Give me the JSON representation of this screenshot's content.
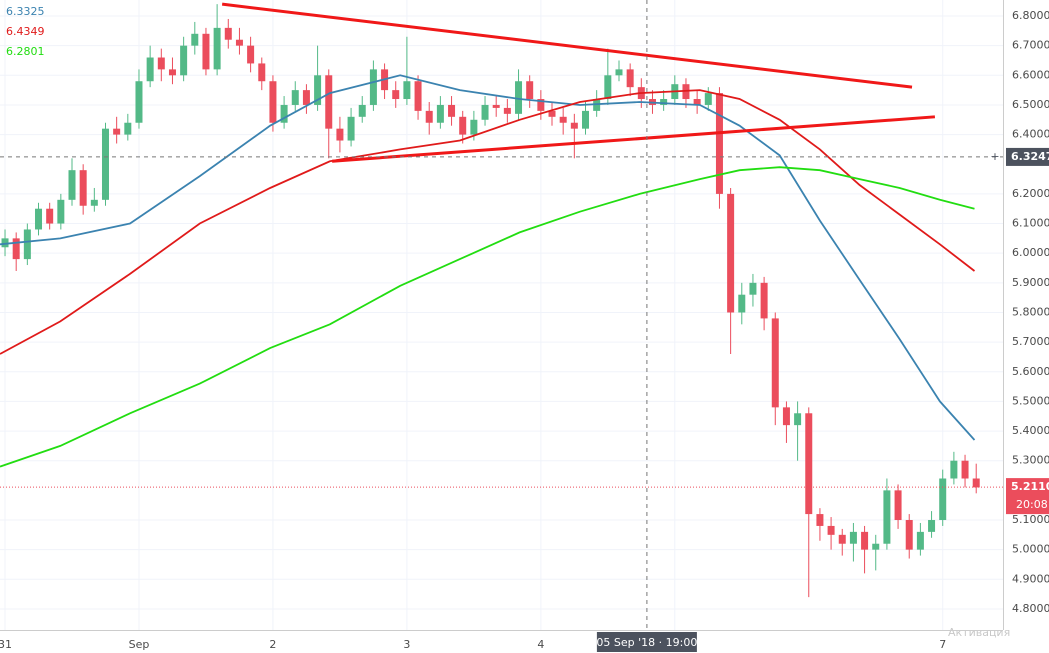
{
  "chart_data": {
    "type": "candlestick",
    "xlim": [
      -0.9,
      178.8
    ],
    "xticks": [
      {
        "value": 0,
        "label": "31"
      },
      {
        "value": 24,
        "label": "Sep"
      },
      {
        "value": 48,
        "label": "2"
      },
      {
        "value": 72,
        "label": "3"
      },
      {
        "value": 96,
        "label": "4"
      },
      {
        "value": 120,
        "label": "5"
      },
      {
        "value": 168,
        "label": "7"
      }
    ],
    "ylim": [
      4.729,
      6.854
    ],
    "yticks": [
      {
        "value": 4.8,
        "label": "4.8000"
      },
      {
        "value": 4.9,
        "label": "4.9000"
      },
      {
        "value": 5.0,
        "label": "5.0000"
      },
      {
        "value": 5.1,
        "label": "5.1000"
      },
      {
        "value": 5.3,
        "label": "5.3000"
      },
      {
        "value": 5.4,
        "label": "5.4000"
      },
      {
        "value": 5.5,
        "label": "5.5000"
      },
      {
        "value": 5.6,
        "label": "5.6000"
      },
      {
        "value": 5.7,
        "label": "5.7000"
      },
      {
        "value": 5.8,
        "label": "5.8000"
      },
      {
        "value": 5.9,
        "label": "5.9000"
      },
      {
        "value": 6.0,
        "label": "6.0000"
      },
      {
        "value": 6.1,
        "label": "6.1000"
      },
      {
        "value": 6.2,
        "label": "6.2000"
      },
      {
        "value": 6.4,
        "label": "6.4000"
      },
      {
        "value": 6.5,
        "label": "6.5000"
      },
      {
        "value": 6.6,
        "label": "6.6000"
      },
      {
        "value": 6.7,
        "label": "6.7000"
      },
      {
        "value": 6.8,
        "label": "6.8000"
      }
    ],
    "grid": true,
    "up_color": "#53b987",
    "down_color": "#eb4d5c",
    "candles": {
      "x": [
        0,
        2,
        4,
        6,
        8,
        10,
        12,
        14,
        16,
        18,
        20,
        22,
        24,
        26,
        28,
        30,
        32,
        34,
        36,
        38,
        40,
        42,
        44,
        46,
        48,
        50,
        52,
        54,
        56,
        58,
        60,
        62,
        64,
        66,
        68,
        70,
        72,
        74,
        76,
        78,
        80,
        82,
        84,
        86,
        88,
        90,
        92,
        94,
        96,
        98,
        100,
        102,
        104,
        106,
        108,
        110,
        112,
        114,
        116,
        118,
        120,
        122,
        124,
        126,
        128,
        130,
        132,
        134,
        136,
        138,
        140,
        142,
        144,
        146,
        148,
        150,
        152,
        154,
        156,
        158,
        160,
        162,
        164,
        166,
        168,
        170,
        172,
        174
      ],
      "open": [
        6.02,
        6.05,
        5.98,
        6.08,
        6.15,
        6.1,
        6.18,
        6.28,
        6.16,
        6.18,
        6.42,
        6.4,
        6.44,
        6.58,
        6.66,
        6.62,
        6.6,
        6.7,
        6.74,
        6.62,
        6.76,
        6.72,
        6.7,
        6.64,
        6.58,
        6.44,
        6.5,
        6.55,
        6.5,
        6.6,
        6.42,
        6.38,
        6.46,
        6.5,
        6.62,
        6.55,
        6.52,
        6.58,
        6.48,
        6.44,
        6.5,
        6.46,
        6.4,
        6.45,
        6.5,
        6.49,
        6.47,
        6.58,
        6.52,
        6.48,
        6.46,
        6.44,
        6.42,
        6.48,
        6.52,
        6.6,
        6.62,
        6.56,
        6.52,
        6.5,
        6.52,
        6.57,
        6.52,
        6.5,
        6.54,
        6.2,
        5.8,
        5.86,
        5.9,
        5.78,
        5.48,
        5.42,
        5.46,
        5.12,
        5.08,
        5.05,
        5.02,
        5.06,
        5.0,
        5.02,
        5.2,
        5.1,
        5.0,
        5.06,
        5.1,
        5.24,
        5.3,
        5.24
      ],
      "high": [
        6.08,
        6.07,
        6.1,
        6.17,
        6.17,
        6.2,
        6.32,
        6.3,
        6.22,
        6.44,
        6.46,
        6.47,
        6.62,
        6.7,
        6.69,
        6.66,
        6.73,
        6.78,
        6.76,
        6.84,
        6.79,
        6.76,
        6.73,
        6.66,
        6.6,
        6.53,
        6.58,
        6.57,
        6.7,
        6.62,
        6.46,
        6.49,
        6.53,
        6.65,
        6.64,
        6.58,
        6.73,
        6.6,
        6.51,
        6.53,
        6.53,
        6.48,
        6.48,
        6.53,
        6.53,
        6.52,
        6.62,
        6.6,
        6.55,
        6.51,
        6.49,
        6.47,
        6.51,
        6.55,
        6.69,
        6.65,
        6.64,
        6.59,
        6.55,
        6.55,
        6.6,
        6.59,
        6.55,
        6.56,
        6.56,
        6.22,
        5.9,
        5.93,
        5.92,
        5.8,
        5.5,
        5.5,
        5.48,
        5.14,
        5.11,
        5.07,
        5.09,
        5.08,
        5.05,
        5.24,
        5.22,
        5.12,
        5.09,
        5.13,
        5.27,
        5.33,
        5.32,
        5.29
      ],
      "low": [
        5.99,
        5.94,
        5.96,
        6.06,
        6.08,
        6.08,
        6.16,
        6.13,
        6.14,
        6.16,
        6.37,
        6.38,
        6.42,
        6.56,
        6.58,
        6.57,
        6.58,
        6.67,
        6.6,
        6.6,
        6.69,
        6.67,
        6.61,
        6.55,
        6.41,
        6.42,
        6.48,
        6.47,
        6.48,
        6.32,
        6.34,
        6.36,
        6.44,
        6.48,
        6.52,
        6.49,
        6.5,
        6.45,
        6.4,
        6.42,
        6.43,
        6.37,
        6.38,
        6.43,
        6.46,
        6.44,
        6.45,
        6.49,
        6.45,
        6.43,
        6.4,
        6.32,
        6.4,
        6.46,
        6.5,
        6.58,
        6.53,
        6.49,
        6.47,
        6.48,
        6.5,
        6.49,
        6.47,
        6.48,
        6.15,
        5.66,
        5.76,
        5.82,
        5.74,
        5.42,
        5.36,
        5.3,
        4.84,
        5.03,
        5.0,
        4.98,
        4.96,
        4.92,
        4.93,
        5.0,
        5.07,
        4.97,
        4.98,
        5.04,
        5.08,
        5.22,
        5.21,
        5.19
      ],
      "close": [
        6.05,
        5.98,
        6.08,
        6.15,
        6.1,
        6.18,
        6.28,
        6.16,
        6.18,
        6.42,
        6.4,
        6.44,
        6.58,
        6.66,
        6.62,
        6.6,
        6.7,
        6.74,
        6.62,
        6.76,
        6.72,
        6.7,
        6.64,
        6.58,
        6.44,
        6.5,
        6.55,
        6.5,
        6.6,
        6.42,
        6.38,
        6.46,
        6.5,
        6.62,
        6.55,
        6.52,
        6.58,
        6.48,
        6.44,
        6.5,
        6.46,
        6.4,
        6.45,
        6.5,
        6.49,
        6.47,
        6.58,
        6.52,
        6.48,
        6.46,
        6.44,
        6.42,
        6.48,
        6.52,
        6.6,
        6.62,
        6.56,
        6.52,
        6.5,
        6.52,
        6.57,
        6.52,
        6.5,
        6.54,
        6.2,
        5.8,
        5.86,
        5.9,
        5.78,
        5.48,
        5.42,
        5.46,
        5.12,
        5.08,
        5.05,
        5.02,
        5.06,
        5.0,
        5.02,
        5.2,
        5.1,
        5.0,
        5.06,
        5.1,
        5.24,
        5.3,
        5.24,
        5.21
      ]
    },
    "ma_x": [
      -0.9,
      9.9,
      22.4,
      34.9,
      47.5,
      58.2,
      70.8,
      81.5,
      92.2,
      103,
      113.7,
      124.5,
      131.6,
      138.8,
      146,
      153.1,
      160.3,
      167.5,
      173.7
    ],
    "series": [
      {
        "color": "#3b83b0",
        "legend_value": 6.3325,
        "values": [
          6.03,
          6.05,
          6.1,
          6.26,
          6.43,
          6.54,
          6.6,
          6.55,
          6.52,
          6.5,
          6.51,
          6.5,
          6.43,
          6.33,
          6.11,
          5.91,
          5.71,
          5.5,
          5.37
        ]
      },
      {
        "color": "#e01a1a",
        "legend_value": 6.4349,
        "values": [
          5.66,
          5.77,
          5.93,
          6.1,
          6.22,
          6.31,
          6.35,
          6.38,
          6.45,
          6.51,
          6.54,
          6.55,
          6.52,
          6.45,
          6.35,
          6.23,
          6.13,
          6.03,
          5.94
        ]
      },
      {
        "color": "#22dd11",
        "legend_value": 6.2801,
        "values": [
          5.28,
          5.35,
          5.46,
          5.56,
          5.68,
          5.76,
          5.89,
          5.98,
          6.07,
          6.14,
          6.2,
          6.25,
          6.28,
          6.29,
          6.28,
          6.25,
          6.22,
          6.18,
          6.15
        ]
      }
    ],
    "trendlines": [
      {
        "color": "#f01818",
        "x": [
          38.9,
          162.5
        ],
        "y": [
          6.84,
          6.56
        ]
      },
      {
        "color": "#f01818",
        "x": [
          58.6,
          166.6
        ],
        "y": [
          6.31,
          6.46
        ]
      }
    ],
    "crosshair": {
      "x": 115,
      "x_label": "05 Sep '18 · 19:00",
      "price": 6.3247
    },
    "last_price": {
      "value": 5.211,
      "label": "5.2110"
    },
    "countdown": "20:08",
    "watermark": "Активация"
  }
}
